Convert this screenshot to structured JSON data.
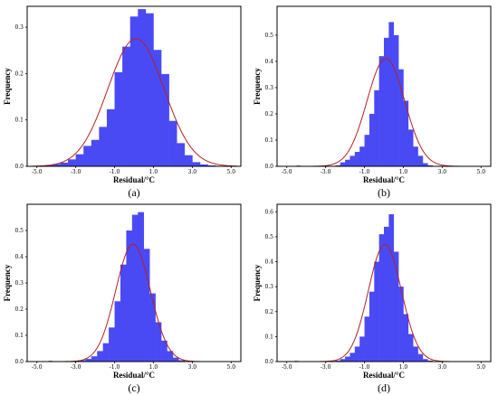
{
  "chart_data": [
    {
      "type": "bar",
      "panel_label": "(a)",
      "xlabel": "Residual/°C",
      "ylabel": "Frequency",
      "xlim": [
        -5.5,
        5.5
      ],
      "ylim": [
        0,
        0.345
      ],
      "xticks": [
        "-5.0",
        "-3.0",
        "-1.0",
        "1.0",
        "3.0",
        "5.0"
      ],
      "xtick_values": [
        -5,
        -3,
        -1,
        1,
        3,
        5
      ],
      "yticks": [
        "0.0",
        "0.1",
        "0.2",
        "0.3"
      ],
      "ytick_values": [
        0,
        0.1,
        0.2,
        0.3
      ],
      "bin_width": 0.4,
      "bin_start": -4.6,
      "values": [
        0.002,
        0.005,
        0.008,
        0.015,
        0.026,
        0.044,
        0.057,
        0.085,
        0.123,
        0.203,
        0.258,
        0.323,
        0.339,
        0.33,
        0.251,
        0.199,
        0.098,
        0.05,
        0.024,
        0.009,
        0.004,
        0.002
      ],
      "fit": {
        "mu": 0.1,
        "sigma": 1.45
      },
      "bar_color": "#4a4af5",
      "curve_color": "#b22222"
    },
    {
      "type": "bar",
      "panel_label": "(b)",
      "xlabel": "Residual/°C",
      "ylabel": "Frequency",
      "xlim": [
        -5.5,
        5.5
      ],
      "ylim": [
        0,
        0.61
      ],
      "xticks": [
        "-5.0",
        "-3.0",
        "-1.0",
        "1.0",
        "3.0",
        "5.0"
      ],
      "xtick_values": [
        -5,
        -3,
        -1,
        1,
        3,
        5
      ],
      "yticks": [
        "0.0",
        "0.1",
        "0.2",
        "0.3",
        "0.4",
        "0.5"
      ],
      "ytick_values": [
        0,
        0.1,
        0.2,
        0.3,
        0.4,
        0.5
      ],
      "bin_width": 0.25,
      "bin_start": -2.5,
      "values": [
        0.004,
        0.015,
        0.025,
        0.04,
        0.055,
        0.075,
        0.12,
        0.2,
        0.29,
        0.42,
        0.49,
        0.55,
        0.5,
        0.37,
        0.25,
        0.14,
        0.075,
        0.04,
        0.012,
        0.004
      ],
      "extra_bins": [
        {
          "x": -4.5,
          "w": 0.2,
          "v": 0.003
        }
      ],
      "fit": {
        "mu": 0.1,
        "sigma": 0.97
      },
      "bar_color": "#4a4af5",
      "curve_color": "#b22222"
    },
    {
      "type": "bar",
      "panel_label": "(c)",
      "xlabel": "Residual/°C",
      "ylabel": "Frequency",
      "xlim": [
        -5.5,
        5.5
      ],
      "ylim": [
        0,
        0.6
      ],
      "xticks": [
        "-5.0",
        "-3.0",
        "-1.0",
        "1.0",
        "3.0",
        "5.0"
      ],
      "xtick_values": [
        -5,
        -3,
        -1,
        1,
        3,
        5
      ],
      "yticks": [
        "0.0",
        "0.1",
        "0.2",
        "0.3",
        "0.4",
        "0.5"
      ],
      "ytick_values": [
        0,
        0.1,
        0.2,
        0.3,
        0.4,
        0.5
      ],
      "bin_width": 0.3,
      "bin_start": -2.8,
      "values": [
        0.005,
        0.01,
        0.02,
        0.04,
        0.07,
        0.13,
        0.23,
        0.37,
        0.5,
        0.56,
        0.57,
        0.43,
        0.26,
        0.15,
        0.08,
        0.04,
        0.015,
        0.005
      ],
      "extra_bins": [
        {
          "x": -4.4,
          "w": 0.2,
          "v": 0.003
        }
      ],
      "fit": {
        "mu": -0.05,
        "sigma": 0.89
      },
      "bar_color": "#4a4af5",
      "curve_color": "#b22222"
    },
    {
      "type": "bar",
      "panel_label": "(d)",
      "xlabel": "Residual/°C",
      "ylabel": "Frequency",
      "xlim": [
        -5.5,
        5.5
      ],
      "ylim": [
        0,
        0.63
      ],
      "xticks": [
        "-5.0",
        "-3.0",
        "-1.0",
        "1.0",
        "3.0",
        "5.0"
      ],
      "xtick_values": [
        -5,
        -3,
        -1,
        1,
        3,
        5
      ],
      "yticks": [
        "0.0",
        "0.1",
        "0.2",
        "0.3",
        "0.4",
        "0.5",
        "0.6"
      ],
      "ytick_values": [
        0,
        0.1,
        0.2,
        0.3,
        0.4,
        0.5,
        0.6
      ],
      "bin_width": 0.25,
      "bin_start": -2.5,
      "values": [
        0.004,
        0.01,
        0.02,
        0.035,
        0.06,
        0.1,
        0.18,
        0.28,
        0.4,
        0.51,
        0.54,
        0.59,
        0.44,
        0.3,
        0.19,
        0.11,
        0.06,
        0.03,
        0.01,
        0.004
      ],
      "extra_bins": [
        {
          "x": -4.6,
          "w": 0.2,
          "v": 0.003
        }
      ],
      "fit": {
        "mu": 0.05,
        "sigma": 0.85
      },
      "bar_color": "#4a4af5",
      "curve_color": "#b22222"
    }
  ]
}
